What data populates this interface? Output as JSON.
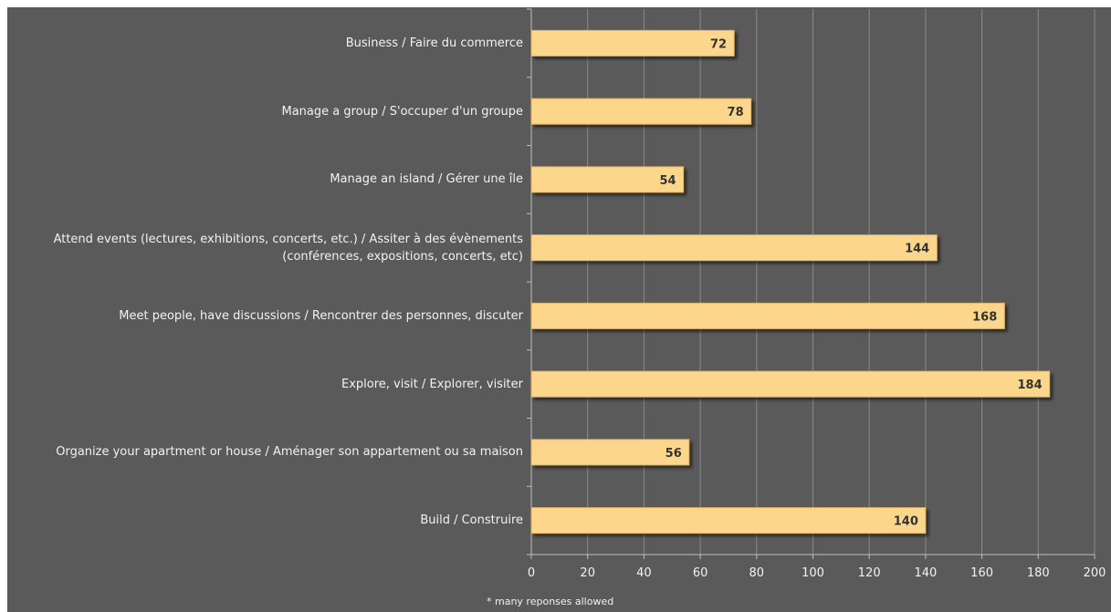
{
  "chart_data": {
    "type": "bar",
    "orientation": "horizontal",
    "categories": [
      "Business / Faire du commerce",
      "Manage a group / S'occuper d'un groupe",
      "Manage an island / Gérer une île",
      "Attend events (lectures, exhibitions, concerts, etc.) / Assiter à des évènements (conférences, expositions, concerts, etc)",
      "Meet people, have discussions / Rencontrer des personnes, discuter",
      "Explore, visit / Explorer, visiter",
      "Organize your apartment or house / Aménager son appartement ou sa maison",
      "Build / Construire"
    ],
    "values": [
      72,
      78,
      54,
      144,
      168,
      184,
      56,
      140
    ],
    "data_labels": [
      "72",
      "78",
      "54",
      "144",
      "168",
      "184",
      "56",
      "140"
    ],
    "xlim": [
      0,
      200
    ],
    "x_ticks": [
      0,
      20,
      40,
      60,
      80,
      100,
      120,
      140,
      160,
      180,
      200
    ],
    "x_tick_labels": [
      "0",
      "20",
      "40",
      "60",
      "80",
      "100",
      "120",
      "140",
      "160",
      "180",
      "200"
    ],
    "grid": true,
    "legend": "none",
    "title": "",
    "xlabel": "",
    "ylabel": "",
    "footnote": "* many reponses allowed"
  },
  "colors": {
    "background": "#5a5a5a",
    "bar_fill": "#fcd68a",
    "bar_stroke": "#e3b662",
    "grid": "#8a8a8a",
    "text": "#f2f2f2",
    "data_label": "#333333"
  }
}
